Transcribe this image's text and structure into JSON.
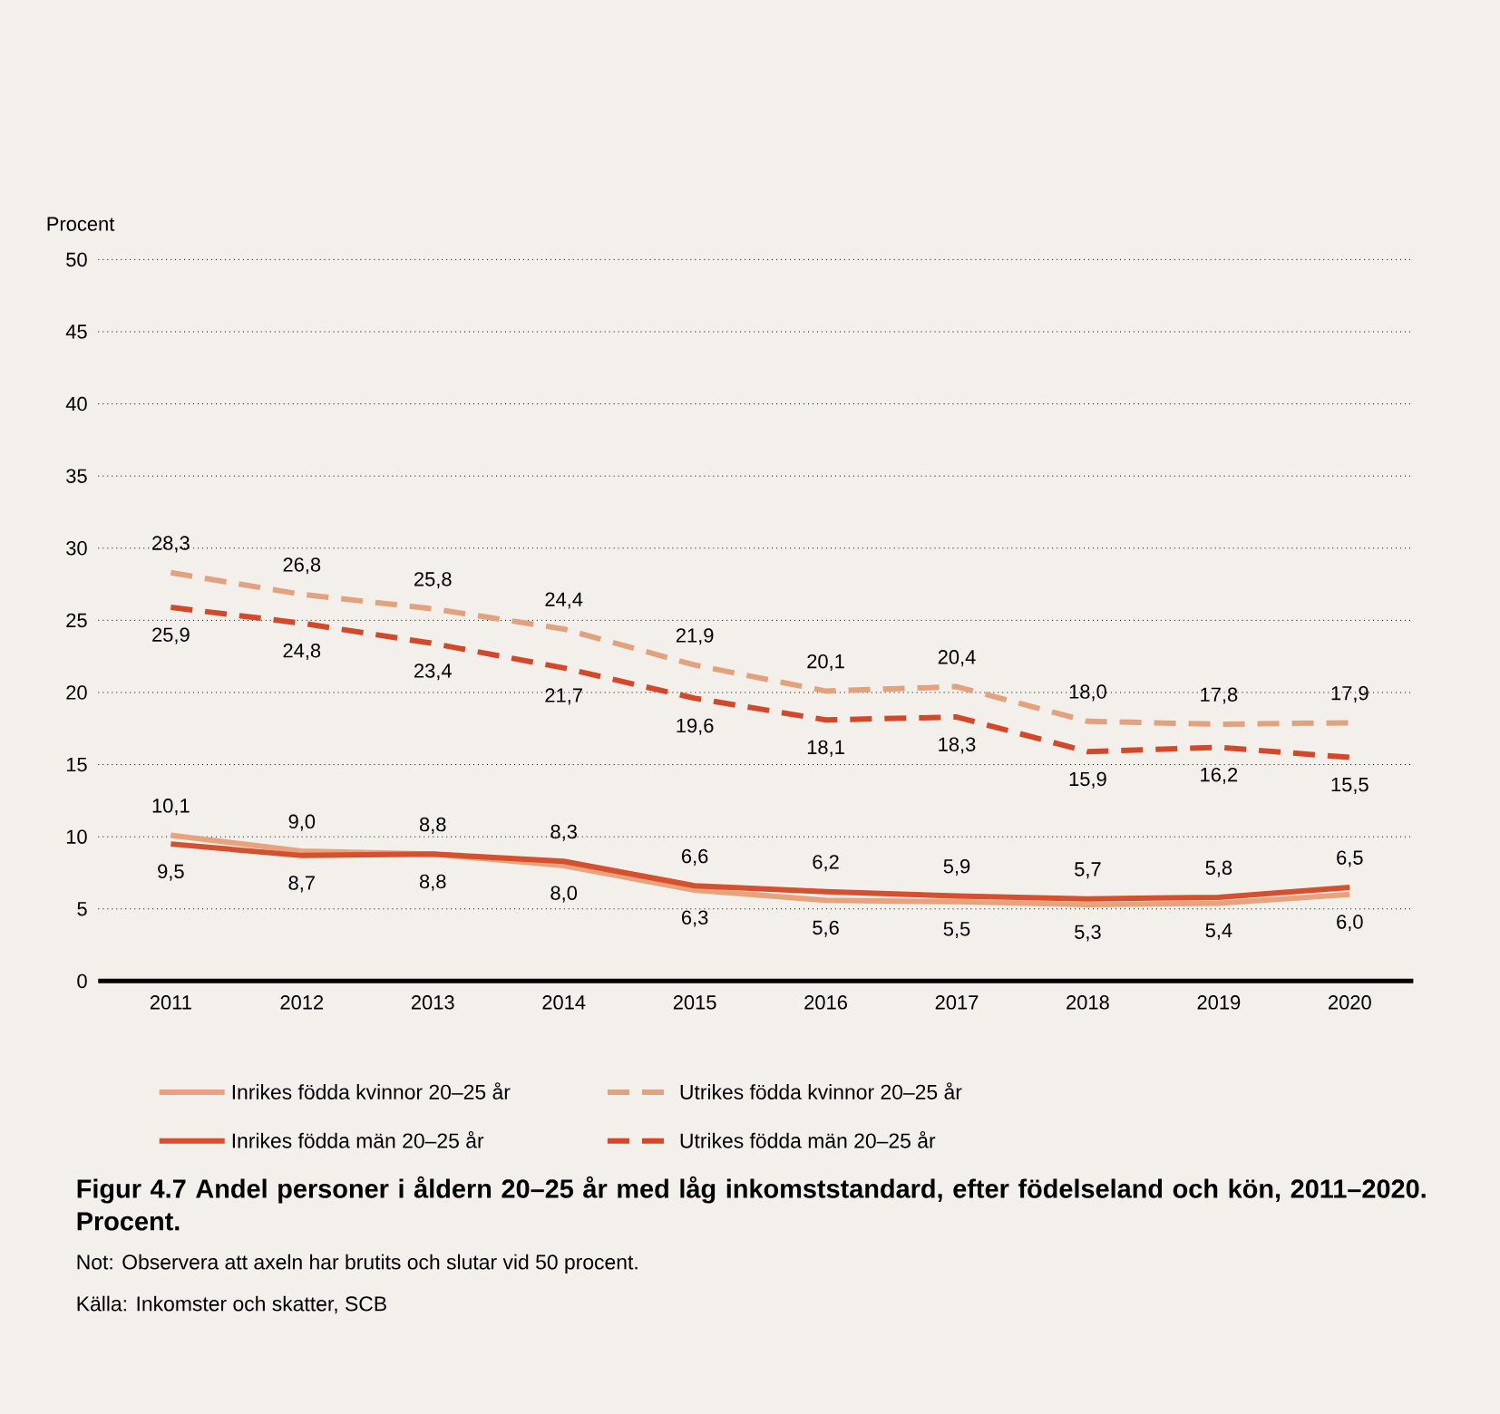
{
  "chart_data": {
    "type": "line",
    "title": "Figur 4.7 Andel personer i åldern 20–25 år med låg inkomststandard, efter födelseland och kön, 2011–2020. Procent.",
    "ylabel": "Procent",
    "annotations": [
      "Not: Observera att axeln har brutits och slutar vid 50 procent.",
      "Källa: Inkomster och skatter, SCB"
    ],
    "categories": [
      "2011",
      "2012",
      "2013",
      "2014",
      "2015",
      "2016",
      "2017",
      "2018",
      "2019",
      "2020"
    ],
    "series": [
      {
        "name": "Inrikes födda kvinnor 20–25 år",
        "color": "#e8a27c",
        "line_style": "solid",
        "values": [
          10.1,
          9.0,
          8.8,
          8.0,
          6.3,
          5.6,
          5.5,
          5.3,
          5.4,
          6.0
        ],
        "value_labels": [
          "10,1",
          "9,0",
          "8,8",
          "8,0",
          "6,3",
          "5,6",
          "5,5",
          "5,3",
          "5,4",
          "6,0"
        ]
      },
      {
        "name": "Utrikes födda kvinnor 20–25 år",
        "color": "#e3a27e",
        "line_style": "dashed",
        "values": [
          28.3,
          26.8,
          25.8,
          24.4,
          21.9,
          20.1,
          20.4,
          18.0,
          17.8,
          17.9
        ],
        "value_labels": [
          "28,3",
          "26,8",
          "25,8",
          "24,4",
          "21,9",
          "20,1",
          "20,4",
          "18,0",
          "17,8",
          "17,9"
        ]
      },
      {
        "name": "Inrikes födda män 20–25 år",
        "color": "#d4502e",
        "line_style": "solid",
        "values": [
          9.5,
          8.7,
          8.8,
          8.3,
          6.6,
          6.2,
          5.9,
          5.7,
          5.8,
          6.5
        ],
        "value_labels": [
          "9,5",
          "8,7",
          "8,8",
          "8,3",
          "6,6",
          "6,2",
          "5,9",
          "5,7",
          "5,8",
          "6,5"
        ]
      },
      {
        "name": "Utrikes födda män 20–25 år",
        "color": "#d4482a",
        "line_style": "dashed",
        "values": [
          25.9,
          24.8,
          23.4,
          21.7,
          19.6,
          18.1,
          18.3,
          15.9,
          16.2,
          15.5
        ],
        "value_labels": [
          "25,9",
          "24,8",
          "23,4",
          "21,7",
          "19,6",
          "18,1",
          "18,3",
          "15,9",
          "16,2",
          "15,5"
        ]
      }
    ],
    "ylim": [
      0,
      50
    ],
    "yticks": [
      0,
      5,
      10,
      15,
      20,
      25,
      30,
      35,
      40,
      45,
      50
    ],
    "grid": "y",
    "legend": "bottom"
  }
}
